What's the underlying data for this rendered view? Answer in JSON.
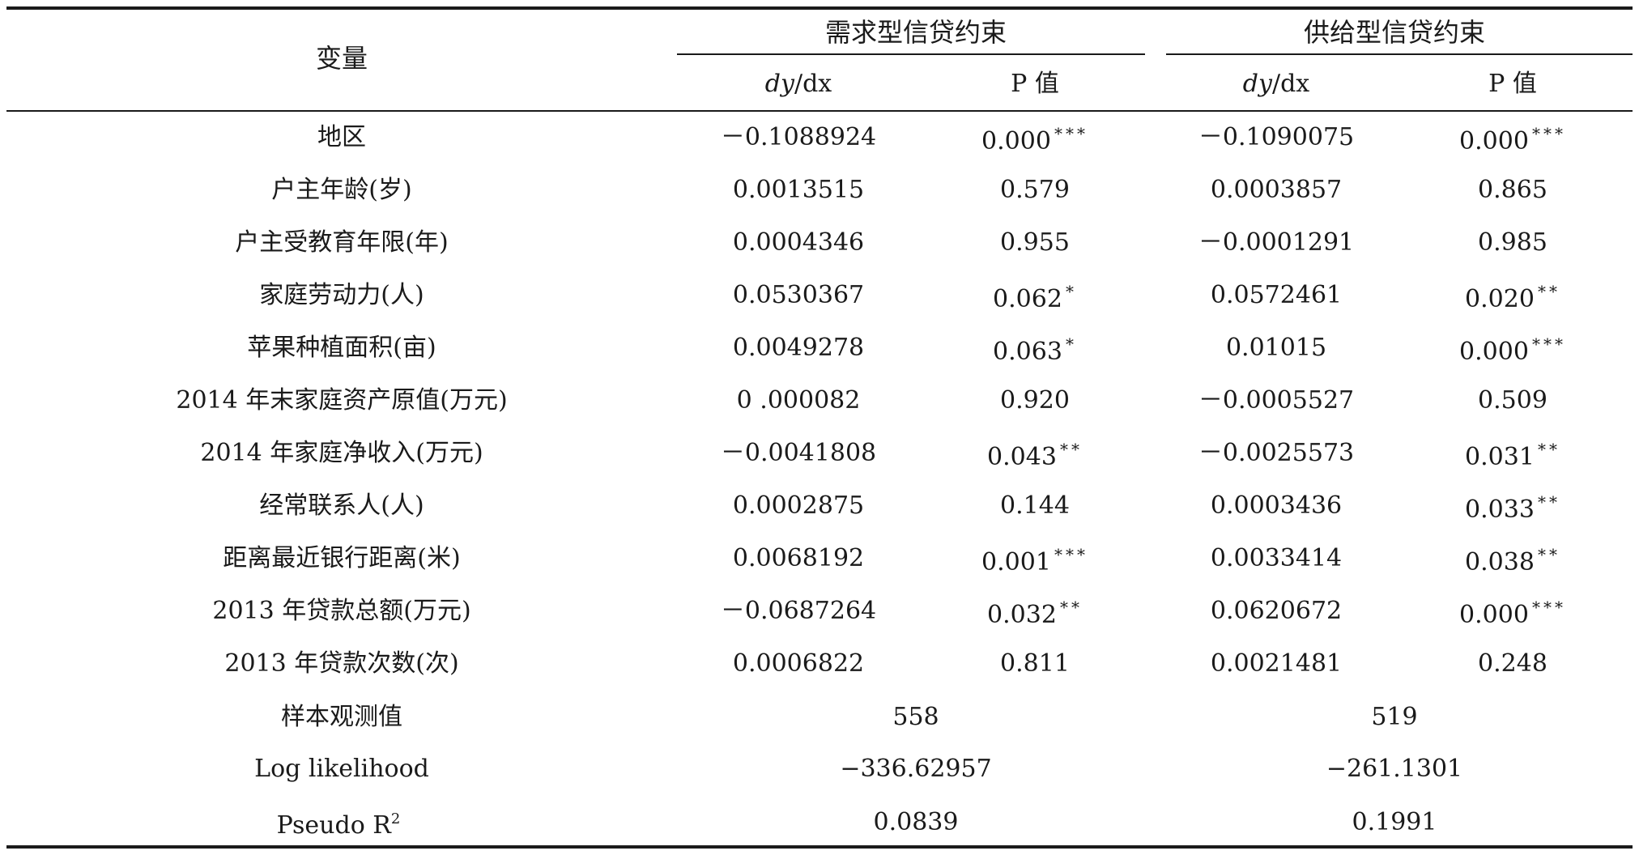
{
  "header": {
    "variable": "变量",
    "group1": "需求型信贷约束",
    "group2": "供给型信贷约束",
    "sub_dy": "dy",
    "sub_dx": "/dx",
    "sub_p": "P 值"
  },
  "rows": [
    {
      "label": "地区",
      "d_coef": "－0.1088924",
      "d_p": "0.000",
      "d_stars": "***",
      "s_coef": "－0.1090075",
      "s_p": "0.000",
      "s_stars": "***"
    },
    {
      "label": "户主年龄(岁)",
      "d_coef": "0.0013515",
      "d_p": "0.579",
      "d_stars": "",
      "s_coef": "0.0003857",
      "s_p": "0.865",
      "s_stars": ""
    },
    {
      "label": "户主受教育年限(年)",
      "d_coef": "0.0004346",
      "d_p": "0.955",
      "d_stars": "",
      "s_coef": "－0.0001291",
      "s_p": "0.985",
      "s_stars": ""
    },
    {
      "label": "家庭劳动力(人)",
      "d_coef": "0.0530367",
      "d_p": "0.062",
      "d_stars": "*",
      "s_coef": "0.0572461",
      "s_p": "0.020",
      "s_stars": "**"
    },
    {
      "label": "苹果种植面积(亩)",
      "d_coef": "0.0049278",
      "d_p": "0.063",
      "d_stars": "*",
      "s_coef": "0.01015",
      "s_p": "0.000",
      "s_stars": "***"
    },
    {
      "label": "2014 年末家庭资产原值(万元)",
      "d_coef": "0 .000082",
      "d_p": "0.920",
      "d_stars": "",
      "s_coef": "－0.0005527",
      "s_p": "0.509",
      "s_stars": ""
    },
    {
      "label": "2014 年家庭净收入(万元)",
      "d_coef": "－0.0041808",
      "d_p": "0.043",
      "d_stars": "**",
      "s_coef": "－0.0025573",
      "s_p": "0.031",
      "s_stars": "**"
    },
    {
      "label": "经常联系人(人)",
      "d_coef": "0.0002875",
      "d_p": "0.144",
      "d_stars": "",
      "s_coef": "0.0003436",
      "s_p": "0.033",
      "s_stars": "**"
    },
    {
      "label": "距离最近银行距离(米)",
      "d_coef": "0.0068192",
      "d_p": "0.001",
      "d_stars": "***",
      "s_coef": "0.0033414",
      "s_p": "0.038",
      "s_stars": "**"
    },
    {
      "label": "2013 年贷款总额(万元)",
      "d_coef": "－0.0687264",
      "d_p": "0.032",
      "d_stars": "**",
      "s_coef": "0.0620672",
      "s_p": "0.000",
      "s_stars": "***"
    },
    {
      "label": "2013 年贷款次数(次)",
      "d_coef": "0.0006822",
      "d_p": "0.811",
      "d_stars": "",
      "s_coef": "0.0021481",
      "s_p": "0.248",
      "s_stars": ""
    }
  ],
  "summary": [
    {
      "label": "样本观测值",
      "demand": "558",
      "supply": "519"
    },
    {
      "label": "Log likelihood",
      "demand": "−336.62957",
      "supply": "−261.1301"
    }
  ],
  "pseudo": {
    "label": "Pseudo R",
    "sup": "2",
    "demand": "0.0839",
    "supply": "0.1991"
  }
}
